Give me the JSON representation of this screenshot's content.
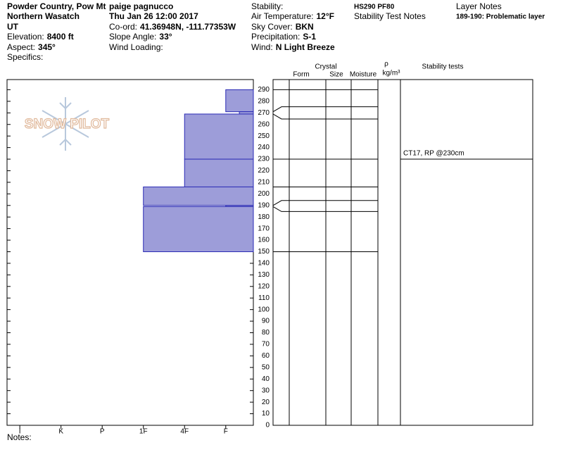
{
  "header": {
    "location": "Powder Country, Pow Mt",
    "observer": "paige pagnucco",
    "range": "Northern Wasatch",
    "datetime": "Thu Jan 26 12:00 2017",
    "state": "UT",
    "coord": {
      "label": "Co-ord:",
      "value": "41.36948N, -111.77353W"
    },
    "elevation": {
      "label": "Elevation:",
      "value": "8400 ft"
    },
    "slope": {
      "label": "Slope Angle:",
      "value": "33°"
    },
    "aspect": {
      "label": "Aspect:",
      "value": "345°"
    },
    "wind_loading": {
      "label": "Wind Loading:"
    },
    "specifics": {
      "label": "Specifics:"
    },
    "stability": {
      "label": "Stability:"
    },
    "air_temp": {
      "label": "Air Temperature:",
      "value": "12°F"
    },
    "sky": {
      "label": "Sky Cover:",
      "value": "BKN"
    },
    "precip": {
      "label": "Precipitation:",
      "value": "S-1"
    },
    "wind": {
      "label": "Wind:",
      "value": "N Light Breeze"
    },
    "summary": "HS290 PF80",
    "stability_notes_title": "Stability Test Notes",
    "layer_notes_title": "Layer Notes",
    "layer_notes": [
      "189-190: Problematic layer"
    ]
  },
  "chart_data": {
    "type": "snow-profile",
    "color": "#9d9dd9",
    "edge_color": "#2b2bb5",
    "ylim": [
      0,
      300
    ],
    "yticks": [
      0,
      10,
      20,
      30,
      40,
      50,
      60,
      70,
      80,
      90,
      100,
      110,
      120,
      130,
      140,
      150,
      160,
      170,
      180,
      190,
      200,
      210,
      220,
      230,
      240,
      250,
      260,
      270,
      280,
      290
    ],
    "xlim": [
      6.31,
      0.33
    ],
    "xticks": [
      {
        "value": 6,
        "label": "I"
      },
      {
        "value": 5,
        "label": "K"
      },
      {
        "value": 4,
        "label": "P"
      },
      {
        "value": 3,
        "label": "1F"
      },
      {
        "value": 2,
        "label": "4F"
      },
      {
        "value": 1,
        "label": "F"
      }
    ],
    "layers": {
      "top": [
        290,
        271,
        269,
        230,
        206,
        190,
        189
      ],
      "bottom": [
        271,
        269,
        230,
        206,
        190,
        189,
        150
      ],
      "hardness": [
        1,
        0.67,
        2,
        2,
        3,
        1,
        3
      ]
    },
    "columns": [
      "Crystal",
      "Form",
      "Size",
      "Moisture",
      "ρ",
      "kg/m³",
      "Stability tests"
    ],
    "stability_tests": [
      {
        "text": "CT17, RP @230cm",
        "depth": 230
      }
    ],
    "watermark": "SNOW PILOT",
    "notes_label": "Notes:"
  }
}
